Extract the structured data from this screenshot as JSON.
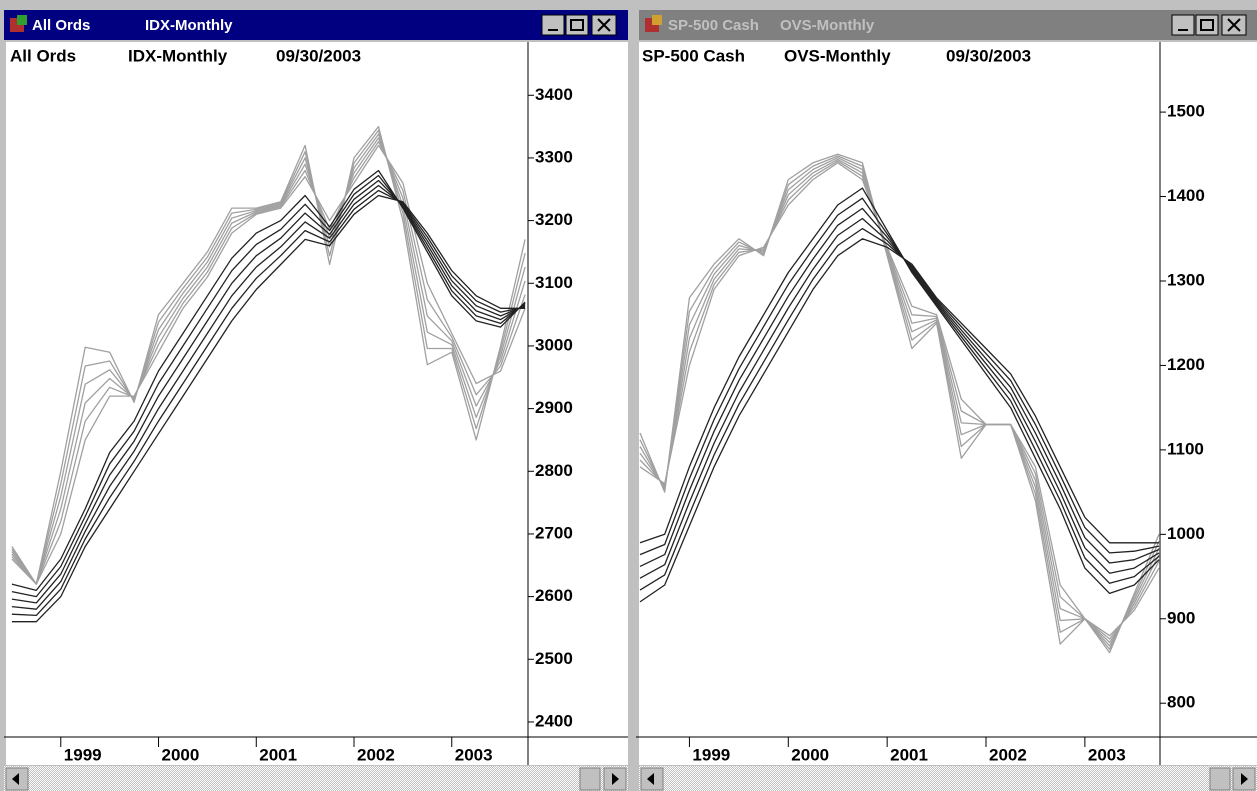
{
  "chart_data": [
    {
      "type": "line",
      "symbol": "All Ords",
      "period": "IDX-Monthly",
      "date": "09/30/2003",
      "x": [
        1998.5,
        1998.75,
        1999.0,
        1999.25,
        1999.5,
        1999.75,
        2000.0,
        2000.25,
        2000.5,
        2000.75,
        2001.0,
        2001.25,
        2001.5,
        2001.75,
        2002.0,
        2002.25,
        2002.5,
        2002.75,
        2003.0,
        2003.25,
        2003.5,
        2003.75
      ],
      "xlim": [
        1998.46,
        2003.78
      ],
      "xticks": [
        1999,
        2000,
        2001,
        2002,
        2003
      ],
      "ylim": [
        2376,
        3485
      ],
      "yticks": [
        2400,
        2500,
        2600,
        2700,
        2800,
        2900,
        3000,
        3100,
        3200,
        3300,
        3400
      ],
      "series": [
        {
          "color": "#a0a0a0",
          "values": [
            2680,
            2620,
            2800,
            2998,
            2990,
            2910,
            3050,
            3100,
            3150,
            3220,
            3220,
            3230,
            3320,
            3130,
            3300,
            3350,
            3200,
            2970,
            2990,
            2850,
            3000,
            3170
          ]
        },
        {
          "color": "#a0a0a0",
          "values": [
            2676,
            2620,
            2780,
            2968,
            2976,
            2912,
            3038,
            3092,
            3142,
            3212,
            3218,
            3228,
            3310,
            3144,
            3292,
            3344,
            3212,
            2996,
            2996,
            2868,
            2992,
            3148
          ]
        },
        {
          "color": "#a0a0a0",
          "values": [
            2672,
            2620,
            2760,
            2939,
            2962,
            2914,
            3026,
            3084,
            3134,
            3204,
            3216,
            3226,
            3300,
            3158,
            3284,
            3338,
            3224,
            3022,
            3002,
            2886,
            2984,
            3126
          ]
        },
        {
          "color": "#a0a0a0",
          "values": [
            2668,
            2620,
            2740,
            2909,
            2948,
            2916,
            3014,
            3076,
            3126,
            3196,
            3214,
            3224,
            3290,
            3172,
            3276,
            3332,
            3236,
            3048,
            3008,
            2904,
            2976,
            3104
          ]
        },
        {
          "color": "#a0a0a0",
          "values": [
            2664,
            2620,
            2720,
            2880,
            2934,
            2918,
            3002,
            3068,
            3118,
            3188,
            3212,
            3222,
            3280,
            3186,
            3268,
            3326,
            3248,
            3074,
            3014,
            2922,
            2968,
            3082
          ]
        },
        {
          "color": "#a0a0a0",
          "values": [
            2660,
            2620,
            2700,
            2850,
            2920,
            2920,
            2990,
            3060,
            3110,
            3180,
            3210,
            3220,
            3270,
            3200,
            3260,
            3320,
            3260,
            3100,
            3020,
            2940,
            2960,
            3060
          ]
        },
        {
          "color": "#222222",
          "values": [
            2620,
            2610,
            2660,
            2740,
            2830,
            2880,
            2960,
            3020,
            3080,
            3140,
            3180,
            3200,
            3240,
            3190,
            3250,
            3280,
            3220,
            3150,
            3080,
            3040,
            3030,
            3070
          ]
        },
        {
          "color": "#222222",
          "values": [
            2608,
            2600,
            2648,
            2728,
            2812,
            2864,
            2940,
            3000,
            3060,
            3120,
            3162,
            3186,
            3226,
            3184,
            3242,
            3272,
            3222,
            3156,
            3088,
            3048,
            3036,
            3068
          ]
        },
        {
          "color": "#222222",
          "values": [
            2596,
            2590,
            2636,
            2716,
            2794,
            2848,
            2920,
            2980,
            3040,
            3100,
            3144,
            3172,
            3212,
            3178,
            3234,
            3264,
            3224,
            3162,
            3096,
            3056,
            3042,
            3066
          ]
        },
        {
          "color": "#222222",
          "values": [
            2584,
            2580,
            2624,
            2704,
            2776,
            2832,
            2900,
            2960,
            3020,
            3080,
            3126,
            3158,
            3198,
            3172,
            3226,
            3256,
            3226,
            3168,
            3104,
            3064,
            3048,
            3064
          ]
        },
        {
          "color": "#222222",
          "values": [
            2572,
            2570,
            2612,
            2692,
            2758,
            2816,
            2880,
            2940,
            3000,
            3060,
            3108,
            3144,
            3184,
            3166,
            3218,
            3248,
            3228,
            3174,
            3112,
            3072,
            3054,
            3062
          ]
        },
        {
          "color": "#222222",
          "values": [
            2560,
            2560,
            2600,
            2680,
            2740,
            2800,
            2860,
            2920,
            2980,
            3040,
            3090,
            3130,
            3170,
            3160,
            3210,
            3240,
            3230,
            3180,
            3120,
            3080,
            3060,
            3060
          ]
        }
      ]
    },
    {
      "type": "line",
      "symbol": "SP-500 Cash",
      "period": "OVS-Monthly",
      "date": "09/30/2003",
      "x": [
        1998.5,
        1998.75,
        1999.0,
        1999.25,
        1999.5,
        1999.75,
        2000.0,
        2000.25,
        2000.5,
        2000.75,
        2001.0,
        2001.25,
        2001.5,
        2001.75,
        2002.0,
        2002.25,
        2002.5,
        2002.75,
        2003.0,
        2003.25,
        2003.5,
        2003.75
      ],
      "xlim": [
        1998.5,
        2003.76
      ],
      "xticks": [
        1999,
        2000,
        2001,
        2002,
        2003
      ],
      "ylim": [
        760,
        1583
      ],
      "yticks": [
        800,
        900,
        1000,
        1100,
        1200,
        1300,
        1400,
        1500
      ],
      "series": [
        {
          "color": "#a0a0a0",
          "values": [
            1120,
            1050,
            1280,
            1320,
            1350,
            1330,
            1420,
            1440,
            1450,
            1440,
            1330,
            1220,
            1250,
            1090,
            1130,
            1130,
            1040,
            870,
            900,
            860,
            930,
            1000
          ]
        },
        {
          "color": "#a0a0a0",
          "values": [
            1112,
            1052,
            1264,
            1314,
            1346,
            1332,
            1414,
            1436,
            1448,
            1436,
            1332,
            1230,
            1252,
            1104,
            1130,
            1130,
            1048,
            884,
            900,
            864,
            926,
            992
          ]
        },
        {
          "color": "#a0a0a0",
          "values": [
            1104,
            1054,
            1248,
            1308,
            1342,
            1334,
            1408,
            1432,
            1446,
            1432,
            1334,
            1240,
            1254,
            1118,
            1130,
            1130,
            1056,
            898,
            900,
            868,
            922,
            984
          ]
        },
        {
          "color": "#a0a0a0",
          "values": [
            1096,
            1056,
            1232,
            1302,
            1338,
            1336,
            1402,
            1428,
            1444,
            1428,
            1336,
            1250,
            1256,
            1132,
            1130,
            1130,
            1064,
            912,
            900,
            872,
            918,
            976
          ]
        },
        {
          "color": "#a0a0a0",
          "values": [
            1088,
            1058,
            1216,
            1296,
            1334,
            1338,
            1396,
            1424,
            1442,
            1424,
            1338,
            1260,
            1258,
            1146,
            1130,
            1130,
            1072,
            926,
            900,
            876,
            914,
            968
          ]
        },
        {
          "color": "#a0a0a0",
          "values": [
            1080,
            1060,
            1200,
            1290,
            1330,
            1340,
            1390,
            1420,
            1440,
            1420,
            1340,
            1270,
            1260,
            1160,
            1130,
            1130,
            1080,
            940,
            900,
            880,
            910,
            960
          ]
        },
        {
          "color": "#222222",
          "values": [
            990,
            1000,
            1080,
            1150,
            1210,
            1260,
            1310,
            1350,
            1390,
            1410,
            1360,
            1310,
            1270,
            1230,
            1190,
            1150,
            1090,
            1030,
            960,
            930,
            940,
            970
          ]
        },
        {
          "color": "#222222",
          "values": [
            976,
            988,
            1066,
            1136,
            1196,
            1246,
            1296,
            1338,
            1378,
            1398,
            1356,
            1312,
            1272,
            1234,
            1196,
            1158,
            1100,
            1040,
            972,
            942,
            950,
            974
          ]
        },
        {
          "color": "#222222",
          "values": [
            962,
            976,
            1052,
            1122,
            1182,
            1232,
            1282,
            1326,
            1366,
            1386,
            1352,
            1314,
            1274,
            1238,
            1202,
            1166,
            1110,
            1050,
            984,
            954,
            960,
            978
          ]
        },
        {
          "color": "#222222",
          "values": [
            948,
            964,
            1038,
            1108,
            1168,
            1218,
            1268,
            1314,
            1354,
            1374,
            1348,
            1316,
            1276,
            1242,
            1208,
            1174,
            1120,
            1060,
            996,
            966,
            970,
            982
          ]
        },
        {
          "color": "#222222",
          "values": [
            934,
            952,
            1024,
            1094,
            1154,
            1204,
            1254,
            1302,
            1342,
            1362,
            1344,
            1318,
            1278,
            1246,
            1214,
            1182,
            1130,
            1070,
            1008,
            978,
            980,
            986
          ]
        },
        {
          "color": "#222222",
          "values": [
            920,
            940,
            1010,
            1080,
            1140,
            1190,
            1240,
            1290,
            1330,
            1350,
            1340,
            1320,
            1280,
            1250,
            1220,
            1190,
            1140,
            1080,
            1020,
            990,
            990,
            990
          ]
        }
      ]
    }
  ]
}
